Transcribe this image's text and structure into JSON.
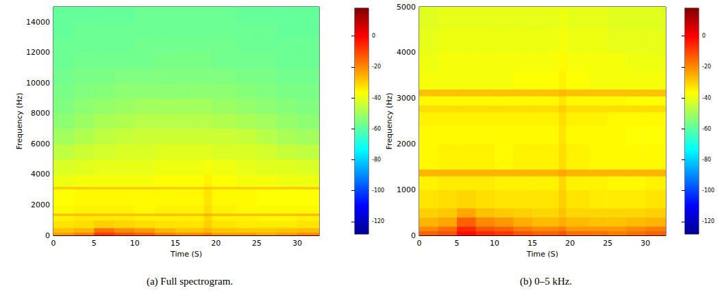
{
  "chart_data": [
    {
      "type": "heatmap",
      "title": "(a) Full spectrogram.",
      "x_label": "Time (S)",
      "y_label": "Frequency (Hz)",
      "color": "jet",
      "xlim": [
        0,
        32.7
      ],
      "xticks": [
        0,
        5,
        10,
        15,
        20,
        25,
        30
      ],
      "ylim": [
        0,
        15000
      ],
      "yticks": [
        0,
        2000,
        4000,
        6000,
        8000,
        10000,
        12000,
        14000
      ],
      "x_edges": [
        0,
        2.5,
        5,
        7.5,
        10,
        12.5,
        15,
        17.5,
        18.5,
        19.5,
        22.5,
        25,
        27.5,
        30,
        32.7
      ],
      "y_edges": [
        0,
        200,
        500,
        1000,
        1300,
        1450,
        2000,
        3050,
        3200,
        4000,
        5000,
        6000,
        7000,
        8000,
        9000,
        10000,
        11000,
        12000,
        13000,
        14000,
        15000
      ],
      "cells": [
        [
          -22,
          -18,
          -8,
          -12,
          -14,
          -18,
          -20,
          -20,
          -18,
          -22,
          -22,
          -24,
          -22,
          -20
        ],
        [
          -28,
          -26,
          -16,
          -20,
          -22,
          -26,
          -28,
          -28,
          -26,
          -28,
          -29,
          -29,
          -28,
          -27
        ],
        [
          -33,
          -32,
          -30,
          -31,
          -32,
          -33,
          -33,
          -33,
          -30,
          -33,
          -34,
          -34,
          -34,
          -33
        ],
        [
          -35,
          -34,
          -34,
          -34,
          -35,
          -35,
          -35,
          -35,
          -31,
          -35,
          -35,
          -36,
          -36,
          -35
        ],
        [
          -27,
          -27,
          -27,
          -27,
          -27,
          -27,
          -27,
          -27,
          -25,
          -27,
          -27,
          -27,
          -27,
          -27
        ],
        [
          -36,
          -35,
          -35,
          -35,
          -36,
          -35,
          -35,
          -35,
          -32,
          -35,
          -36,
          -36,
          -36,
          -36
        ],
        [
          -37,
          -36,
          -36,
          -36,
          -36,
          -36,
          -36,
          -36,
          -33,
          -36,
          -36,
          -37,
          -37,
          -37
        ],
        [
          -29,
          -29,
          -29,
          -29,
          -29,
          -29,
          -29,
          -29,
          -28,
          -29,
          -29,
          -29,
          -29,
          -29
        ],
        [
          -39,
          -38,
          -38,
          -38,
          -38,
          -37,
          -37,
          -37,
          -35,
          -37,
          -38,
          -38,
          -39,
          -39
        ],
        [
          -42,
          -41,
          -40,
          -40,
          -40,
          -39,
          -39,
          -39,
          -38,
          -39,
          -40,
          -41,
          -41,
          -42
        ],
        [
          -46,
          -44,
          -43,
          -42,
          -42,
          -41,
          -41,
          -41,
          -41,
          -42,
          -42,
          -43,
          -45,
          -46
        ],
        [
          -50,
          -48,
          -46,
          -45,
          -44,
          -44,
          -44,
          -44,
          -44,
          -44,
          -45,
          -47,
          -49,
          -50
        ],
        [
          -53,
          -51,
          -49,
          -48,
          -47,
          -47,
          -47,
          -47,
          -47,
          -48,
          -49,
          -50,
          -52,
          -53
        ],
        [
          -55,
          -53,
          -52,
          -51,
          -50,
          -50,
          -50,
          -50,
          -50,
          -51,
          -52,
          -53,
          -54,
          -55
        ],
        [
          -56,
          -55,
          -54,
          -53,
          -53,
          -53,
          -53,
          -53,
          -53,
          -53,
          -54,
          -55,
          -56,
          -56
        ],
        [
          -57,
          -56,
          -56,
          -55,
          -55,
          -55,
          -55,
          -55,
          -55,
          -55,
          -56,
          -56,
          -57,
          -57
        ],
        [
          -58,
          -57,
          -57,
          -57,
          -57,
          -56,
          -56,
          -56,
          -56,
          -57,
          -57,
          -57,
          -58,
          -58
        ],
        [
          -58,
          -58,
          -58,
          -58,
          -57,
          -57,
          -57,
          -57,
          -57,
          -57,
          -58,
          -58,
          -58,
          -58
        ],
        [
          -59,
          -58,
          -58,
          -58,
          -58,
          -58,
          -58,
          -58,
          -58,
          -58,
          -58,
          -58,
          -59,
          -59
        ],
        [
          -59,
          -59,
          -59,
          -59,
          -58,
          -58,
          -58,
          -58,
          -58,
          -58,
          -59,
          -59,
          -59,
          -59
        ]
      ],
      "colorbar": {
        "range": [
          -128,
          18
        ],
        "ticks": [
          -120,
          -100,
          -80,
          -60,
          -40,
          -20,
          0
        ]
      }
    },
    {
      "type": "heatmap",
      "title": "(b) 0–5 kHz.",
      "x_label": "Time (S)",
      "y_label": "Frequency (Hz)",
      "color": "jet",
      "xlim": [
        0,
        32.7
      ],
      "xticks": [
        0,
        5,
        10,
        15,
        20,
        25,
        30
      ],
      "ylim": [
        0,
        5000
      ],
      "yticks": [
        0,
        1000,
        2000,
        3000,
        4000,
        5000
      ],
      "x_edges": [
        0,
        2.5,
        5,
        7.5,
        10,
        12.5,
        15,
        17.5,
        18.5,
        19.5,
        22.5,
        25,
        27.5,
        30,
        32.7
      ],
      "y_edges": [
        0,
        100,
        200,
        400,
        600,
        1000,
        1300,
        1450,
        2000,
        2400,
        2700,
        2850,
        3050,
        3200,
        3600,
        4000,
        4500,
        5000
      ],
      "cells": [
        [
          -14,
          -12,
          -2,
          -6,
          -8,
          -12,
          -14,
          -14,
          -12,
          -16,
          -16,
          -18,
          -16,
          -14
        ],
        [
          -20,
          -16,
          -6,
          -12,
          -14,
          -18,
          -20,
          -20,
          -18,
          -22,
          -22,
          -22,
          -20,
          -18
        ],
        [
          -26,
          -24,
          -14,
          -20,
          -22,
          -25,
          -27,
          -27,
          -25,
          -27,
          -28,
          -28,
          -27,
          -26
        ],
        [
          -30,
          -29,
          -24,
          -28,
          -29,
          -30,
          -31,
          -31,
          -28,
          -31,
          -31,
          -31,
          -31,
          -30
        ],
        [
          -33,
          -32,
          -31,
          -32,
          -33,
          -33,
          -33,
          -33,
          -30,
          -33,
          -34,
          -34,
          -34,
          -33
        ],
        [
          -35,
          -34,
          -34,
          -34,
          -35,
          -35,
          -35,
          -35,
          -31,
          -35,
          -35,
          -36,
          -36,
          -35
        ],
        [
          -26,
          -26,
          -26,
          -26,
          -26,
          -26,
          -26,
          -26,
          -24,
          -26,
          -26,
          -26,
          -26,
          -26
        ],
        [
          -36,
          -35,
          -35,
          -35,
          -36,
          -35,
          -35,
          -35,
          -32,
          -35,
          -36,
          -36,
          -36,
          -36
        ],
        [
          -36,
          -36,
          -36,
          -36,
          -36,
          -36,
          -36,
          -36,
          -33,
          -36,
          -36,
          -36,
          -37,
          -37
        ],
        [
          -35,
          -35,
          -35,
          -35,
          -35,
          -35,
          -35,
          -35,
          -32,
          -35,
          -35,
          -36,
          -36,
          -36
        ],
        [
          -32,
          -32,
          -32,
          -32,
          -32,
          -32,
          -32,
          -32,
          -30,
          -32,
          -32,
          -32,
          -32,
          -32
        ],
        [
          -36,
          -36,
          -36,
          -36,
          -36,
          -36,
          -36,
          -36,
          -33,
          -36,
          -36,
          -36,
          -37,
          -37
        ],
        [
          -28,
          -28,
          -28,
          -28,
          -28,
          -28,
          -28,
          -28,
          -27,
          -28,
          -28,
          -28,
          -28,
          -28
        ],
        [
          -38,
          -38,
          -38,
          -38,
          -38,
          -37,
          -37,
          -37,
          -35,
          -37,
          -38,
          -38,
          -38,
          -38
        ],
        [
          -39,
          -38,
          -38,
          -38,
          -38,
          -38,
          -38,
          -38,
          -36,
          -38,
          -38,
          -38,
          -39,
          -39
        ],
        [
          -40,
          -39,
          -39,
          -39,
          -39,
          -39,
          -39,
          -39,
          -38,
          -39,
          -39,
          -40,
          -40,
          -40
        ],
        [
          -41,
          -40,
          -40,
          -40,
          -40,
          -40,
          -40,
          -40,
          -39,
          -40,
          -40,
          -41,
          -41,
          -41
        ]
      ],
      "colorbar": {
        "range": [
          -128,
          18
        ],
        "ticks": [
          -120,
          -100,
          -80,
          -60,
          -40,
          -20,
          0
        ]
      }
    }
  ]
}
